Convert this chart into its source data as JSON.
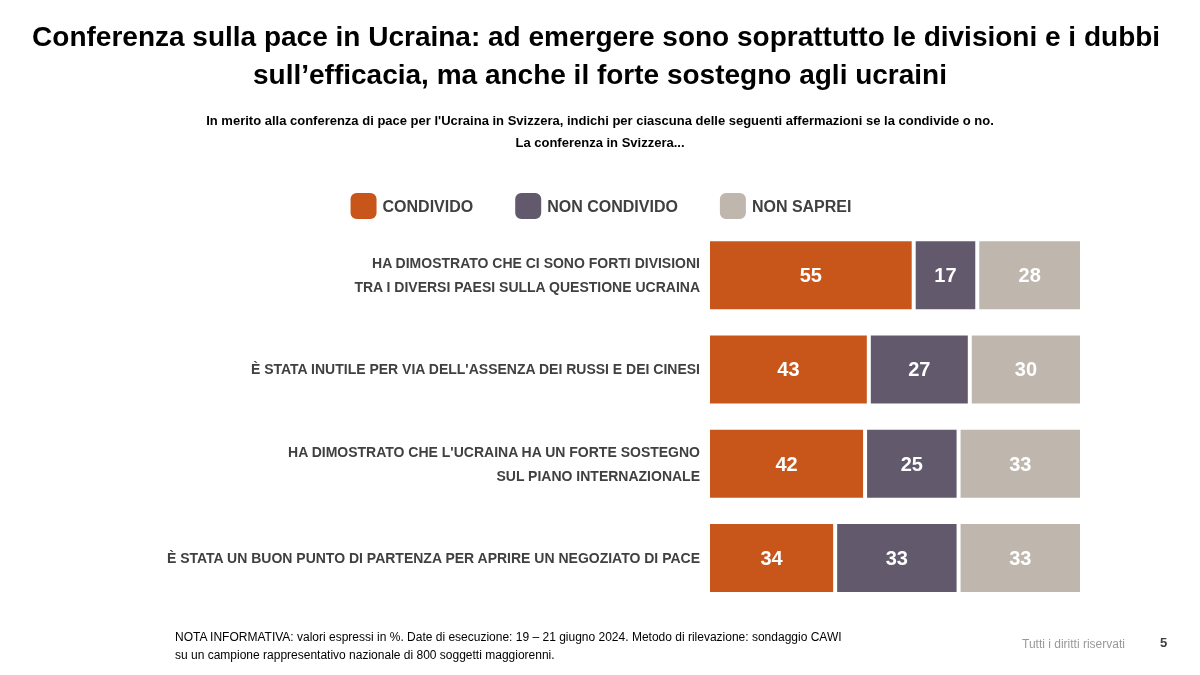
{
  "chart_data": {
    "type": "bar",
    "orientation": "horizontal",
    "stacked": true,
    "data_labels": true,
    "legend": "top",
    "tick_labels": "y",
    "title": "Conferenza sulla pace in Ucraina: ad emergere sono soprattutto le divisioni e i dubbi sull’efficacia, ma anche il forte sostegno agli ucraini",
    "subtitle": "In merito alla conferenza di pace per l'Ucraina in Svizzera, indichi per ciascuna delle seguenti affermazioni se la condivide o no.\nLa conferenza in Svizzera...",
    "categories": [
      "HA DIMOSTRATO CHE CI SONO FORTI DIVISIONI\nTRA I DIVERSI PAESI SULLA QUESTIONE UCRAINA",
      "È STATA INUTILE PER VIA DELL'ASSENZA DEI RUSSI E DEI CINESI",
      "HA DIMOSTRATO CHE L'UCRAINA HA UN FORTE SOSTEGNO\nSUL PIANO INTERNAZIONALE",
      "È STATA UN BUON PUNTO DI PARTENZA PER APRIRE UN NEGOZIATO DI PACE"
    ],
    "xlim": [
      0,
      100
    ],
    "series": [
      {
        "name": "CONDIVIDO",
        "color": "#c8561b",
        "values": [
          55,
          43,
          42,
          34
        ]
      },
      {
        "name": "NON CONDIVIDO",
        "color": "#62596d",
        "values": [
          17,
          27,
          25,
          33
        ]
      },
      {
        "name": "NON SAPREI",
        "color": "#bfb6ae",
        "values": [
          28,
          30,
          33,
          33
        ]
      }
    ],
    "annotations": [
      "NOTA INFORMATIVA: valori espressi in %. Date di esecuzione: 19 – 21 giugno 2024. Metodo di rilevazione: sondaggio CAWI su un campione rappresentativo nazionale di 800 soggetti maggiorenni.",
      "Tutti i diritti riservati",
      "5"
    ]
  }
}
